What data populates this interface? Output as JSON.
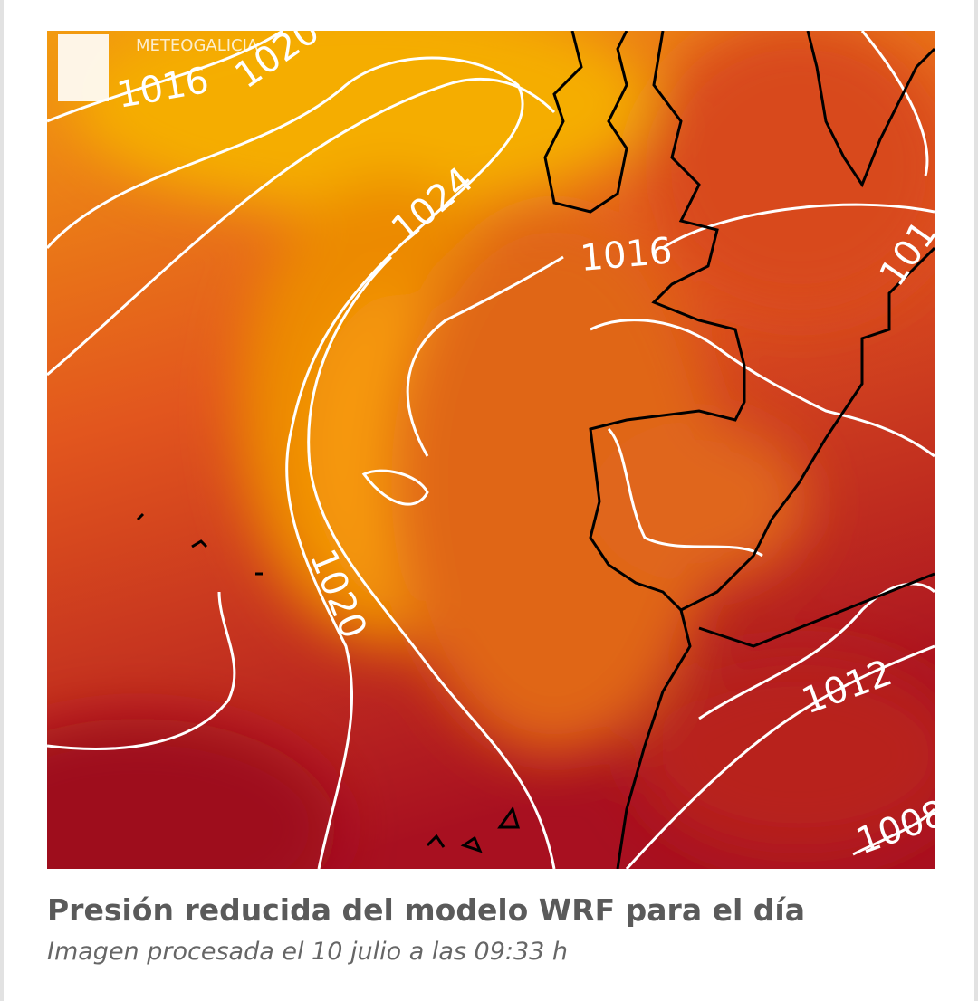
{
  "map": {
    "watermark": "METEOGALICIA",
    "isobar_labels": [
      "1016",
      "1020",
      "1024",
      "1016",
      "1020",
      "1012",
      "1008",
      "101"
    ]
  },
  "caption": {
    "title": "Presión reducida del modelo WRF para el día",
    "subtitle": "Imagen procesada el 10 julio a las 09:33 h"
  }
}
